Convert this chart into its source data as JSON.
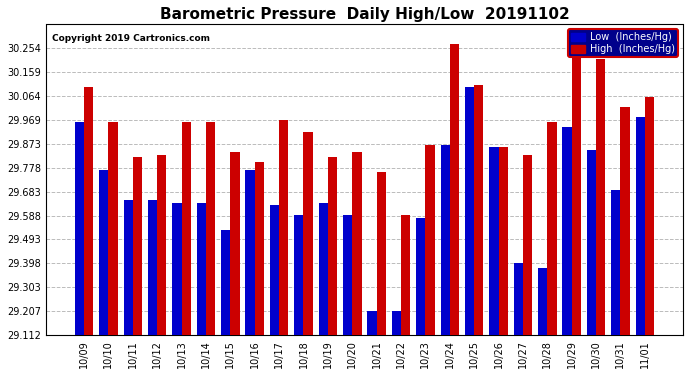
{
  "title": "Barometric Pressure  Daily High/Low  20191102",
  "copyright": "Copyright 2019 Cartronics.com",
  "dates": [
    "10/09",
    "10/10",
    "10/11",
    "10/12",
    "10/13",
    "10/14",
    "10/15",
    "10/16",
    "10/17",
    "10/18",
    "10/19",
    "10/20",
    "10/21",
    "10/22",
    "10/23",
    "10/24",
    "10/25",
    "10/26",
    "10/27",
    "10/28",
    "10/29",
    "10/30",
    "10/31",
    "11/01"
  ],
  "low_values": [
    29.96,
    29.77,
    29.65,
    29.65,
    29.64,
    29.64,
    29.53,
    29.77,
    29.63,
    29.59,
    29.64,
    29.59,
    29.21,
    29.21,
    29.58,
    29.87,
    30.1,
    29.86,
    29.4,
    29.38,
    29.94,
    29.85,
    29.69,
    29.98
  ],
  "high_values": [
    30.1,
    29.96,
    29.82,
    29.83,
    29.96,
    29.96,
    29.84,
    29.8,
    29.97,
    29.92,
    29.82,
    29.84,
    29.76,
    29.59,
    29.87,
    30.27,
    30.11,
    29.86,
    29.83,
    29.96,
    30.22,
    30.21,
    30.02,
    30.06
  ],
  "low_color": "#0000cc",
  "high_color": "#cc0000",
  "bg_color": "#ffffff",
  "plot_bg": "#ffffff",
  "grid_color": "#bbbbbb",
  "ylim_min": 29.112,
  "ylim_max": 30.349,
  "yticks": [
    29.112,
    29.207,
    29.303,
    29.398,
    29.493,
    29.588,
    29.683,
    29.778,
    29.873,
    29.969,
    30.064,
    30.159,
    30.254
  ],
  "title_fontsize": 11,
  "legend_low_label": "Low  (Inches/Hg)",
  "legend_high_label": "High  (Inches/Hg)"
}
